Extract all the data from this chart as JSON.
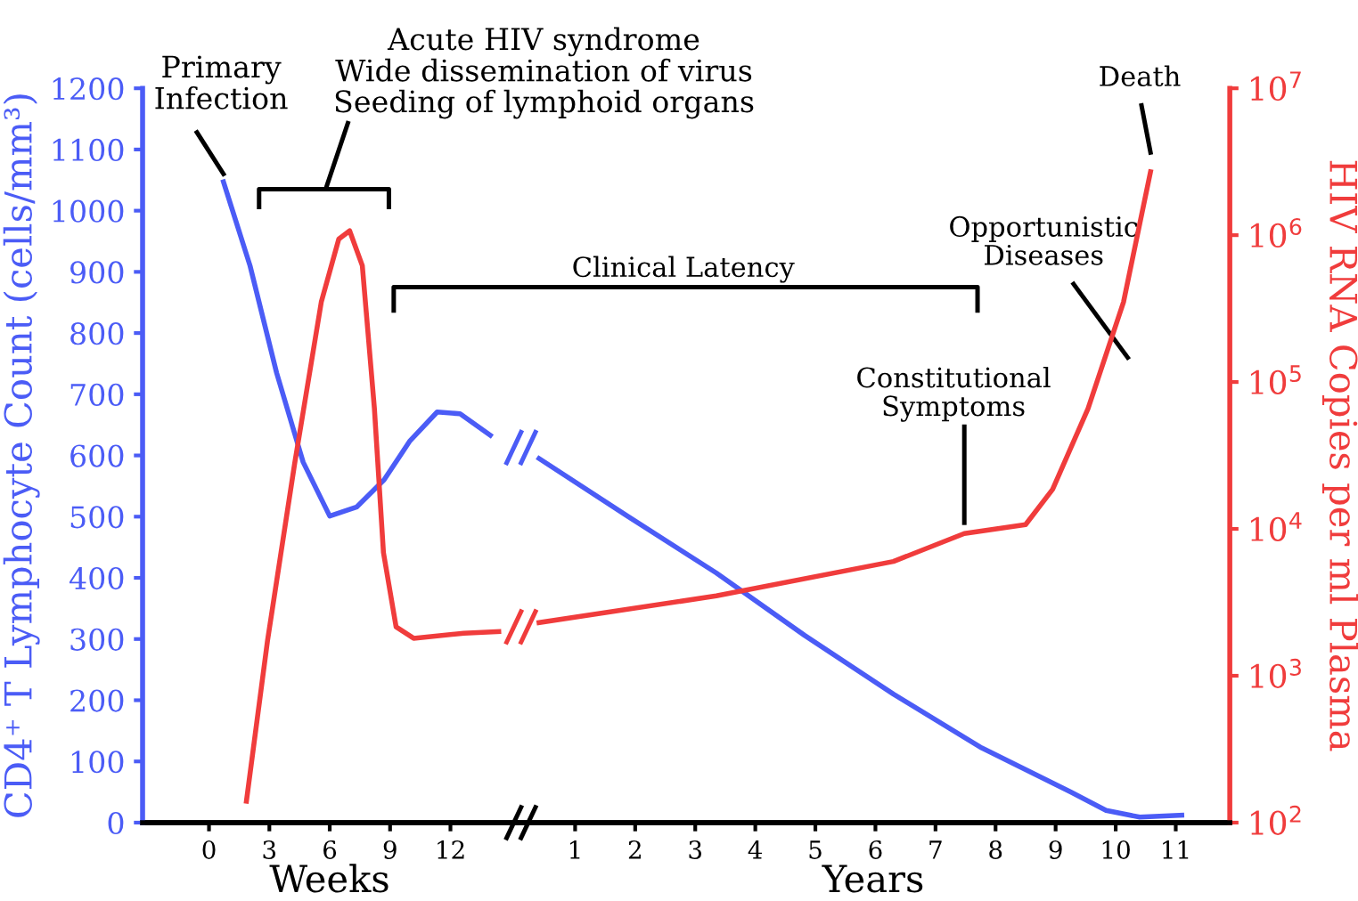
{
  "chart_data": [
    {
      "type": "line",
      "xlabel": "Weeks",
      "ylabel": "CD4⁺ T Lymphocyte Count (cells/mm³)",
      "xlim": [
        -3.3,
        15.3
      ],
      "xticks": [
        0,
        3,
        6,
        9,
        12
      ],
      "ylim": [
        0,
        1200
      ],
      "yticks": [
        0,
        100,
        200,
        300,
        400,
        500,
        600,
        700,
        800,
        900,
        1000,
        1100,
        1200
      ],
      "log": "y2",
      "y2lim": [
        100,
        10000000
      ],
      "marker": "none",
      "line_style": "solid",
      "series": [
        {
          "color": "#4b5cf6",
          "x": [
            0.72,
            2.04,
            3.36,
            4.68,
            6.0,
            7.35,
            8.7,
            9.99,
            11.34,
            12.48,
            13.98
          ],
          "values": [
            1047,
            910,
            735,
            589,
            501,
            516,
            560,
            624,
            671,
            668,
            633
          ]
        },
        {
          "color": "#f03c3c",
          "axis": "y2",
          "x": [
            1.86,
            2.91,
            4.26,
            5.58,
            6.45,
            6.99,
            7.62,
            8.22,
            8.67,
            9.3,
            10.17,
            12.66,
            14.4
          ],
          "values": [
            140,
            1740,
            28000,
            350000,
            940000,
            1070000,
            620000,
            66000,
            6900,
            2150,
            1800,
            1950,
            2000
          ]
        }
      ],
      "annotations": [
        "Primary\nInfection",
        "Acute HIV syndrome\nWide dissemination of virus\nSeeding of lymphoid organs"
      ]
    },
    {
      "type": "line",
      "xlabel": "Years",
      "y2label": "HIV RNA Copies per ml Plasma",
      "xlim": [
        0.03,
        11.9
      ],
      "xticks": [
        1,
        2,
        3,
        4,
        5,
        6,
        7,
        8,
        9,
        10,
        11
      ],
      "ylim": [
        0,
        1200
      ],
      "log": "y2",
      "y2lim": [
        100,
        10000000
      ],
      "y2ticks": [
        {
          "value": 100,
          "label": "10$^{2}$"
        },
        {
          "value": 1000,
          "label": "10$^{3}$"
        },
        {
          "value": 10000,
          "label": "10$^{4}$"
        },
        {
          "value": 100000,
          "label": "10$^{5}$"
        },
        {
          "value": 1000000,
          "label": "10$^{6}$"
        },
        {
          "value": 10000000,
          "label": "10$^{7}$"
        }
      ],
      "marker": "none",
      "line_style": "solid",
      "series": [
        {
          "color": "#4b5cf6",
          "x": [
            0.4,
            1.87,
            3.35,
            4.82,
            6.3,
            7.77,
            9.25,
            9.84,
            10.4,
            11.1
          ],
          "values": [
            595,
            501,
            408,
            306,
            210,
            122,
            50,
            20,
            9,
            12
          ]
        },
        {
          "color": "#f03c3c",
          "axis": "y2",
          "x": [
            0.4,
            3.35,
            6.3,
            7.48,
            8.5,
            8.95,
            9.54,
            10.13,
            10.58
          ],
          "values": [
            2300,
            3500,
            6000,
            9300,
            10700,
            18600,
            66000,
            350000,
            2700000
          ]
        }
      ],
      "annotations": [
        "Clinical Latency",
        "Constitutional\nSymptoms",
        "Opportunistic\nDiseases",
        "Death"
      ]
    }
  ]
}
